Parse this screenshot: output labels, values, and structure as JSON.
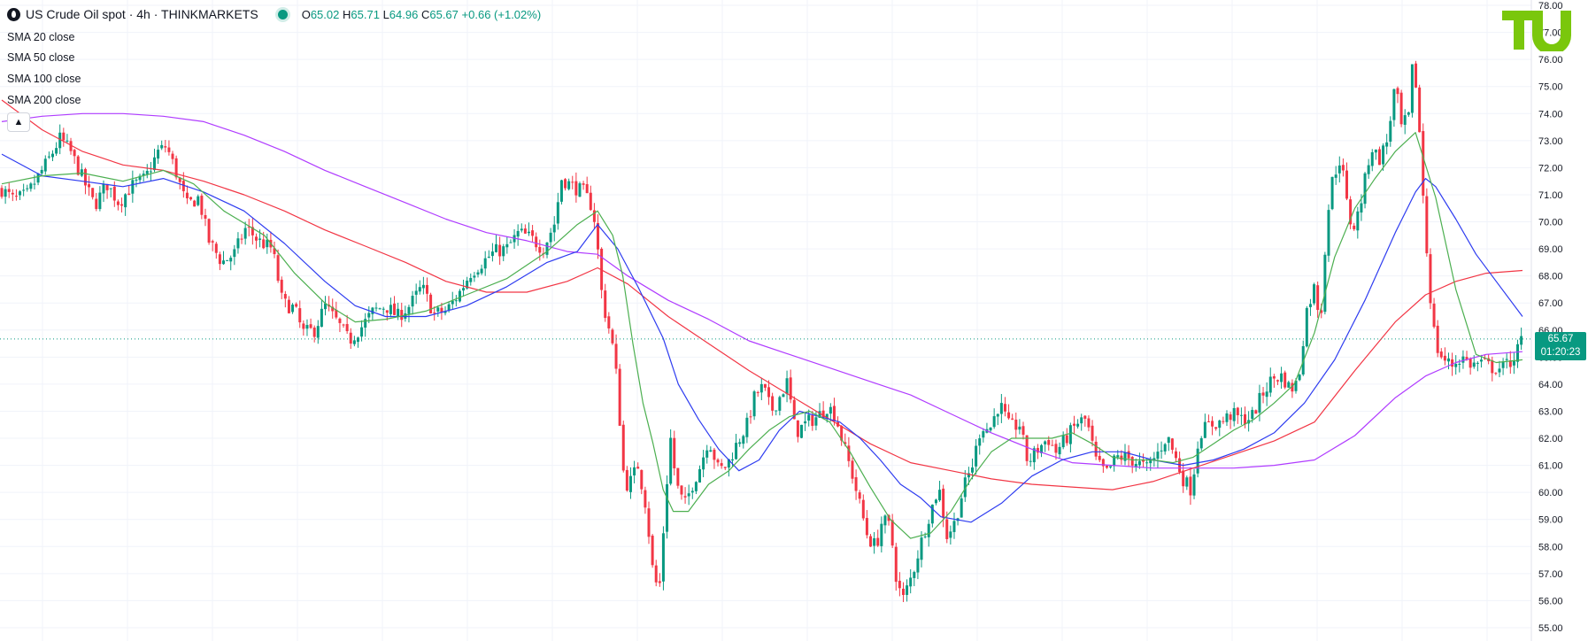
{
  "header": {
    "title": "US Crude Oil spot · 4h · THINKMARKETS",
    "open_label": "O",
    "open": "65.02",
    "high_label": "H",
    "high": "65.71",
    "low_label": "L",
    "low": "64.96",
    "close_label": "C",
    "close": "65.67",
    "change": "+0.66 (+1.02%)"
  },
  "indicators": [
    {
      "label": "SMA",
      "value": "20 close"
    },
    {
      "label": "SMA",
      "value": "50 close"
    },
    {
      "label": "SMA",
      "value": "100 close"
    },
    {
      "label": "SMA",
      "value": "200 close"
    }
  ],
  "last_price": {
    "price": "65.67",
    "countdown": "01:20:23"
  },
  "colors": {
    "up": "#089981",
    "down": "#f23645",
    "sma20": "#4caf50",
    "sma50": "#2e3cf0",
    "sma100": "#f23645",
    "sma200": "#b03cff",
    "logo": "#7ac70c"
  },
  "chart_data": {
    "type": "candlestick",
    "symbol": "US Crude Oil spot",
    "timeframe": "4h",
    "ylim": [
      54.9,
      78.0
    ],
    "y_ticks": [
      "55.00",
      "56.00",
      "57.00",
      "58.00",
      "59.00",
      "60.00",
      "61.00",
      "62.00",
      "63.00",
      "64.00",
      "65.00",
      "66.00",
      "67.00",
      "68.00",
      "69.00",
      "70.00",
      "71.00",
      "72.00",
      "73.00",
      "74.00",
      "75.00",
      "76.00",
      "77.00",
      "78.00"
    ],
    "grid": true,
    "close_path": [
      [
        0,
        71.2
      ],
      [
        12,
        70.8
      ],
      [
        25,
        71.0
      ],
      [
        35,
        71.6
      ],
      [
        48,
        72.4
      ],
      [
        58,
        73.1
      ],
      [
        68,
        72.6
      ],
      [
        80,
        71.6
      ],
      [
        92,
        70.6
      ],
      [
        104,
        71.4
      ],
      [
        116,
        70.7
      ],
      [
        128,
        71.3
      ],
      [
        142,
        71.6
      ],
      [
        155,
        72.6
      ],
      [
        163,
        72.8
      ],
      [
        172,
        71.9
      ],
      [
        183,
        70.6
      ],
      [
        195,
        70.9
      ],
      [
        205,
        69.3
      ],
      [
        218,
        68.5
      ],
      [
        230,
        68.8
      ],
      [
        242,
        69.8
      ],
      [
        254,
        69.3
      ],
      [
        268,
        69.0
      ],
      [
        278,
        67.0
      ],
      [
        290,
        66.8
      ],
      [
        298,
        65.9
      ],
      [
        310,
        66.0
      ],
      [
        320,
        66.9
      ],
      [
        332,
        66.3
      ],
      [
        344,
        65.6
      ],
      [
        356,
        66.1
      ],
      [
        368,
        66.7
      ],
      [
        380,
        66.9
      ],
      [
        392,
        66.5
      ],
      [
        404,
        66.9
      ],
      [
        416,
        67.6
      ],
      [
        428,
        66.6
      ],
      [
        440,
        66.7
      ],
      [
        452,
        67.3
      ],
      [
        464,
        68.1
      ],
      [
        476,
        68.5
      ],
      [
        488,
        68.9
      ],
      [
        500,
        69.0
      ],
      [
        512,
        69.6
      ],
      [
        524,
        69.4
      ],
      [
        536,
        69.0
      ],
      [
        548,
        70.0
      ],
      [
        554,
        71.6
      ],
      [
        566,
        71.3
      ],
      [
        576,
        71.1
      ],
      [
        584,
        70.6
      ],
      [
        588,
        69.9
      ],
      [
        595,
        67.0
      ],
      [
        600,
        66.3
      ],
      [
        606,
        65.2
      ],
      [
        611,
        63.5
      ],
      [
        614,
        61.0
      ],
      [
        620,
        60.2
      ],
      [
        630,
        61.0
      ],
      [
        638,
        59.5
      ],
      [
        645,
        57.0
      ],
      [
        651,
        56.3
      ],
      [
        656,
        59.0
      ],
      [
        662,
        62.1
      ],
      [
        668,
        60.3
      ],
      [
        676,
        59.5
      ],
      [
        684,
        60.3
      ],
      [
        692,
        61.0
      ],
      [
        700,
        62.0
      ],
      [
        710,
        60.8
      ],
      [
        718,
        61.0
      ],
      [
        728,
        61.8
      ],
      [
        738,
        62.5
      ],
      [
        746,
        63.6
      ],
      [
        754,
        63.9
      ],
      [
        762,
        63.0
      ],
      [
        770,
        63.5
      ],
      [
        778,
        64.1
      ],
      [
        786,
        62.2
      ],
      [
        798,
        62.6
      ],
      [
        808,
        62.8
      ],
      [
        818,
        63.2
      ],
      [
        826,
        62.8
      ],
      [
        834,
        61.7
      ],
      [
        842,
        60.7
      ],
      [
        850,
        59.5
      ],
      [
        858,
        58.3
      ],
      [
        866,
        58.0
      ],
      [
        872,
        59.0
      ],
      [
        880,
        58.7
      ],
      [
        886,
        56.8
      ],
      [
        892,
        56.0
      ],
      [
        902,
        57.0
      ],
      [
        910,
        58.1
      ],
      [
        918,
        59.1
      ],
      [
        928,
        60.2
      ],
      [
        936,
        58.4
      ],
      [
        944,
        58.9
      ],
      [
        952,
        60.1
      ],
      [
        962,
        61.1
      ],
      [
        970,
        62.5
      ],
      [
        978,
        62.3
      ],
      [
        988,
        63.3
      ],
      [
        998,
        62.4
      ],
      [
        1008,
        62.5
      ],
      [
        1016,
        61.1
      ],
      [
        1026,
        61.6
      ],
      [
        1036,
        62.0
      ],
      [
        1044,
        61.5
      ],
      [
        1056,
        62.1
      ],
      [
        1066,
        62.6
      ],
      [
        1074,
        62.7
      ],
      [
        1084,
        61.1
      ],
      [
        1094,
        60.7
      ],
      [
        1104,
        61.3
      ],
      [
        1114,
        61.3
      ],
      [
        1124,
        61.1
      ],
      [
        1134,
        60.9
      ],
      [
        1144,
        61.4
      ],
      [
        1154,
        62.1
      ],
      [
        1162,
        61.3
      ],
      [
        1170,
        60.5
      ],
      [
        1178,
        60.1
      ],
      [
        1186,
        62.2
      ],
      [
        1196,
        62.5
      ],
      [
        1208,
        62.6
      ],
      [
        1218,
        62.9
      ],
      [
        1228,
        62.7
      ],
      [
        1238,
        62.8
      ],
      [
        1248,
        63.6
      ],
      [
        1258,
        64.2
      ],
      [
        1268,
        64.3
      ],
      [
        1276,
        63.8
      ],
      [
        1284,
        64.1
      ],
      [
        1292,
        66.7
      ],
      [
        1300,
        67.6
      ],
      [
        1306,
        66.3
      ],
      [
        1312,
        70.0
      ],
      [
        1318,
        71.6
      ],
      [
        1326,
        72.4
      ],
      [
        1334,
        70.1
      ],
      [
        1340,
        69.8
      ],
      [
        1348,
        71.1
      ],
      [
        1356,
        72.8
      ],
      [
        1364,
        72.3
      ],
      [
        1372,
        73.0
      ],
      [
        1380,
        75.1
      ],
      [
        1386,
        73.5
      ],
      [
        1394,
        73.9
      ],
      [
        1398,
        76.3
      ],
      [
        1404,
        73.3
      ],
      [
        1410,
        69.5
      ],
      [
        1414,
        67.5
      ],
      [
        1420,
        65.4
      ],
      [
        1428,
        64.9
      ],
      [
        1436,
        64.7
      ],
      [
        1446,
        65.0
      ],
      [
        1456,
        64.7
      ],
      [
        1466,
        64.8
      ],
      [
        1476,
        64.6
      ],
      [
        1486,
        64.6
      ],
      [
        1496,
        64.9
      ],
      [
        1506,
        65.67
      ]
    ],
    "sma20": [
      [
        0,
        71.4
      ],
      [
        40,
        71.7
      ],
      [
        80,
        71.8
      ],
      [
        120,
        71.5
      ],
      [
        160,
        71.9
      ],
      [
        190,
        71.4
      ],
      [
        220,
        70.4
      ],
      [
        260,
        69.5
      ],
      [
        290,
        68.1
      ],
      [
        320,
        67.0
      ],
      [
        350,
        66.3
      ],
      [
        380,
        66.4
      ],
      [
        420,
        66.7
      ],
      [
        460,
        67.3
      ],
      [
        500,
        67.9
      ],
      [
        540,
        68.9
      ],
      [
        570,
        69.9
      ],
      [
        590,
        70.4
      ],
      [
        605,
        69.5
      ],
      [
        615,
        68.0
      ],
      [
        625,
        65.5
      ],
      [
        635,
        63.3
      ],
      [
        645,
        61.8
      ],
      [
        655,
        60.1
      ],
      [
        665,
        59.3
      ],
      [
        680,
        59.3
      ],
      [
        700,
        60.3
      ],
      [
        720,
        60.8
      ],
      [
        740,
        61.6
      ],
      [
        760,
        62.3
      ],
      [
        780,
        62.8
      ],
      [
        800,
        63.0
      ],
      [
        820,
        62.6
      ],
      [
        840,
        61.5
      ],
      [
        860,
        60.2
      ],
      [
        880,
        59.0
      ],
      [
        900,
        58.3
      ],
      [
        920,
        58.5
      ],
      [
        940,
        59.3
      ],
      [
        960,
        60.5
      ],
      [
        980,
        61.5
      ],
      [
        1000,
        62.0
      ],
      [
        1020,
        62.0
      ],
      [
        1040,
        62.0
      ],
      [
        1060,
        62.2
      ],
      [
        1080,
        61.8
      ],
      [
        1100,
        61.3
      ],
      [
        1120,
        61.2
      ],
      [
        1140,
        61.2
      ],
      [
        1160,
        61.1
      ],
      [
        1180,
        61.3
      ],
      [
        1200,
        61.8
      ],
      [
        1220,
        62.3
      ],
      [
        1240,
        62.7
      ],
      [
        1260,
        63.3
      ],
      [
        1280,
        64.0
      ],
      [
        1300,
        65.9
      ],
      [
        1320,
        68.7
      ],
      [
        1340,
        70.5
      ],
      [
        1360,
        71.6
      ],
      [
        1380,
        72.6
      ],
      [
        1400,
        73.3
      ],
      [
        1420,
        70.9
      ],
      [
        1440,
        67.5
      ],
      [
        1460,
        65.1
      ],
      [
        1480,
        64.8
      ],
      [
        1506,
        64.9
      ]
    ],
    "sma50": [
      [
        0,
        72.5
      ],
      [
        40,
        71.7
      ],
      [
        80,
        71.5
      ],
      [
        120,
        71.3
      ],
      [
        160,
        71.6
      ],
      [
        200,
        71.1
      ],
      [
        240,
        70.4
      ],
      [
        280,
        69.2
      ],
      [
        320,
        67.8
      ],
      [
        350,
        66.9
      ],
      [
        380,
        66.5
      ],
      [
        420,
        66.5
      ],
      [
        460,
        66.9
      ],
      [
        500,
        67.6
      ],
      [
        540,
        68.5
      ],
      [
        570,
        68.9
      ],
      [
        590,
        69.9
      ],
      [
        610,
        69.0
      ],
      [
        630,
        67.6
      ],
      [
        655,
        65.7
      ],
      [
        670,
        64.0
      ],
      [
        690,
        62.7
      ],
      [
        710,
        61.6
      ],
      [
        730,
        60.8
      ],
      [
        750,
        61.2
      ],
      [
        770,
        62.3
      ],
      [
        790,
        63.0
      ],
      [
        810,
        62.8
      ],
      [
        830,
        62.6
      ],
      [
        850,
        62.0
      ],
      [
        870,
        61.2
      ],
      [
        890,
        60.3
      ],
      [
        910,
        59.8
      ],
      [
        930,
        59.1
      ],
      [
        960,
        58.9
      ],
      [
        990,
        59.6
      ],
      [
        1020,
        60.6
      ],
      [
        1050,
        61.2
      ],
      [
        1080,
        61.5
      ],
      [
        1110,
        61.5
      ],
      [
        1140,
        61.2
      ],
      [
        1170,
        61.0
      ],
      [
        1200,
        61.2
      ],
      [
        1230,
        61.6
      ],
      [
        1260,
        62.2
      ],
      [
        1290,
        63.3
      ],
      [
        1320,
        64.9
      ],
      [
        1350,
        67.1
      ],
      [
        1380,
        69.6
      ],
      [
        1400,
        71.1
      ],
      [
        1410,
        71.6
      ],
      [
        1420,
        71.3
      ],
      [
        1440,
        70.1
      ],
      [
        1460,
        68.8
      ],
      [
        1480,
        67.8
      ],
      [
        1506,
        66.5
      ]
    ],
    "sma100": [
      [
        0,
        74.5
      ],
      [
        40,
        73.4
      ],
      [
        80,
        72.6
      ],
      [
        120,
        72.1
      ],
      [
        160,
        71.9
      ],
      [
        200,
        71.5
      ],
      [
        240,
        71.0
      ],
      [
        280,
        70.4
      ],
      [
        320,
        69.7
      ],
      [
        360,
        69.1
      ],
      [
        400,
        68.5
      ],
      [
        440,
        67.8
      ],
      [
        480,
        67.4
      ],
      [
        520,
        67.4
      ],
      [
        560,
        67.8
      ],
      [
        590,
        68.3
      ],
      [
        620,
        67.7
      ],
      [
        660,
        66.5
      ],
      [
        700,
        65.5
      ],
      [
        740,
        64.5
      ],
      [
        780,
        63.6
      ],
      [
        820,
        62.7
      ],
      [
        860,
        61.8
      ],
      [
        900,
        61.1
      ],
      [
        940,
        60.8
      ],
      [
        980,
        60.5
      ],
      [
        1020,
        60.3
      ],
      [
        1060,
        60.2
      ],
      [
        1100,
        60.1
      ],
      [
        1140,
        60.4
      ],
      [
        1180,
        60.9
      ],
      [
        1220,
        61.4
      ],
      [
        1260,
        61.9
      ],
      [
        1300,
        62.6
      ],
      [
        1340,
        64.5
      ],
      [
        1380,
        66.3
      ],
      [
        1410,
        67.3
      ],
      [
        1440,
        67.8
      ],
      [
        1470,
        68.1
      ],
      [
        1506,
        68.2
      ]
    ],
    "sma200": [
      [
        0,
        73.7
      ],
      [
        40,
        73.9
      ],
      [
        80,
        74.0
      ],
      [
        120,
        74.0
      ],
      [
        160,
        73.9
      ],
      [
        200,
        73.7
      ],
      [
        240,
        73.2
      ],
      [
        280,
        72.6
      ],
      [
        320,
        71.9
      ],
      [
        360,
        71.3
      ],
      [
        400,
        70.7
      ],
      [
        440,
        70.1
      ],
      [
        480,
        69.6
      ],
      [
        520,
        69.3
      ],
      [
        560,
        68.9
      ],
      [
        590,
        68.8
      ],
      [
        620,
        68.0
      ],
      [
        660,
        67.1
      ],
      [
        700,
        66.4
      ],
      [
        740,
        65.6
      ],
      [
        780,
        65.1
      ],
      [
        820,
        64.6
      ],
      [
        860,
        64.1
      ],
      [
        900,
        63.6
      ],
      [
        940,
        62.9
      ],
      [
        980,
        62.2
      ],
      [
        1020,
        61.6
      ],
      [
        1060,
        61.1
      ],
      [
        1100,
        61.0
      ],
      [
        1140,
        60.9
      ],
      [
        1180,
        60.9
      ],
      [
        1220,
        60.9
      ],
      [
        1260,
        61.0
      ],
      [
        1300,
        61.2
      ],
      [
        1340,
        62.1
      ],
      [
        1380,
        63.5
      ],
      [
        1410,
        64.3
      ],
      [
        1440,
        64.8
      ],
      [
        1470,
        65.1
      ],
      [
        1506,
        65.2
      ]
    ]
  }
}
